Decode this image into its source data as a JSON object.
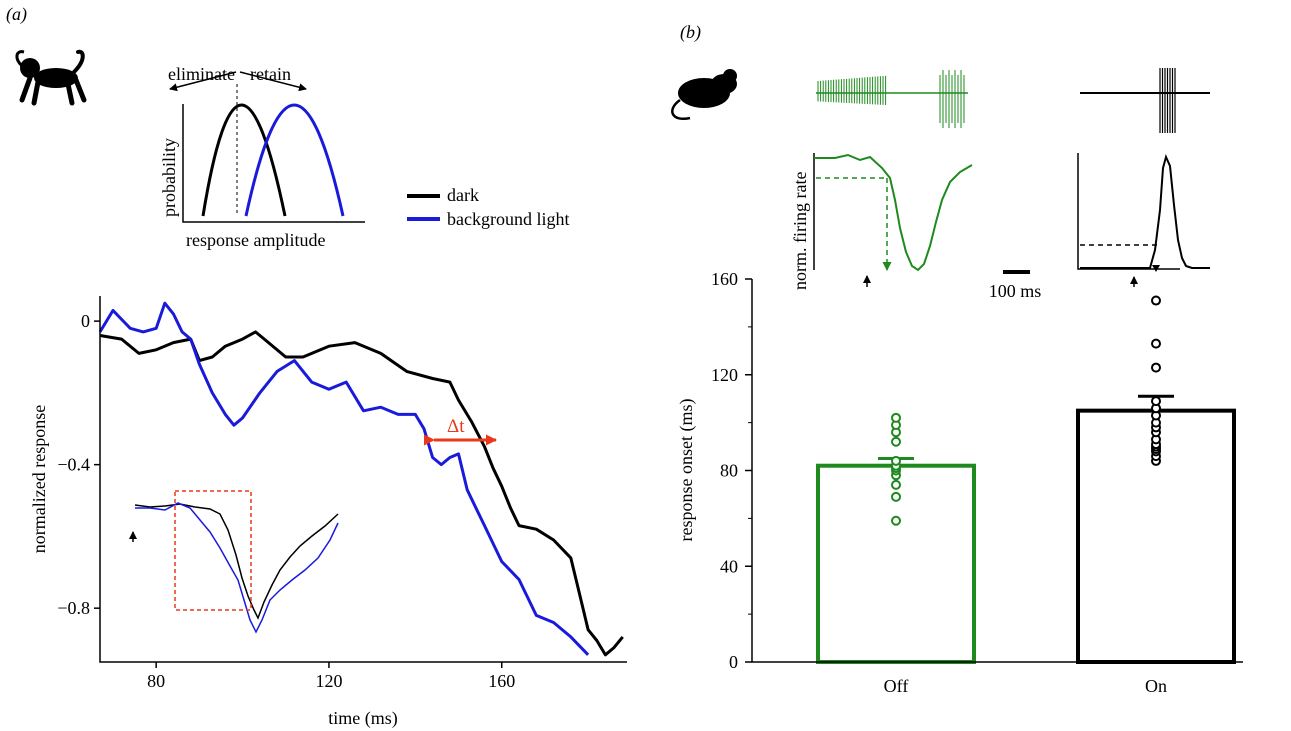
{
  "panel_a": {
    "label": "(a)",
    "schematic": {
      "left_arrow_label": "eliminate",
      "right_arrow_label": "retain",
      "ylabel": "probability",
      "xlabel": "response amplitude"
    },
    "legend": [
      {
        "label": "dark",
        "color": "#000000"
      },
      {
        "label": "background light",
        "color": "#1a1adb"
      }
    ],
    "delta_t_label": "Δt",
    "delta_t_color": "#e8391a"
  },
  "panel_b": {
    "label": "(b)",
    "firing_rate_label": "norm. firing rate",
    "scale_bar_label": "100 ms",
    "off_color": "#1e8a1e",
    "on_color": "#000000"
  },
  "chart_data": [
    {
      "type": "line",
      "xlabel": "time (ms)",
      "ylabel": "normalized response",
      "xlim": [
        67,
        189
      ],
      "ylim": [
        -0.95,
        0.07
      ],
      "x_ticks": [
        80,
        120,
        160
      ],
      "x_tick_labels": [
        "80",
        "120",
        "160"
      ],
      "y_ticks": [
        0,
        -0.4,
        -0.8
      ],
      "y_tick_labels": [
        "0",
        "−0.4",
        "−0.8"
      ],
      "series": [
        {
          "name": "dark",
          "color": "#000000",
          "x": [
            67,
            72,
            76,
            80,
            84,
            88,
            90,
            93,
            96,
            100,
            103,
            106,
            110,
            114,
            120,
            126,
            132,
            138,
            144,
            148,
            150,
            153,
            156,
            158,
            160,
            162,
            164,
            168,
            172,
            176,
            178,
            180,
            182,
            184,
            186,
            188
          ],
          "y": [
            -0.04,
            -0.05,
            -0.09,
            -0.08,
            -0.06,
            -0.05,
            -0.11,
            -0.1,
            -0.07,
            -0.05,
            -0.03,
            -0.06,
            -0.1,
            -0.1,
            -0.07,
            -0.06,
            -0.09,
            -0.14,
            -0.16,
            -0.17,
            -0.22,
            -0.28,
            -0.35,
            -0.41,
            -0.46,
            -0.52,
            -0.57,
            -0.58,
            -0.61,
            -0.66,
            -0.76,
            -0.86,
            -0.89,
            -0.93,
            -0.91,
            -0.88
          ]
        },
        {
          "name": "background light",
          "color": "#1a1adb",
          "x": [
            67,
            70,
            74,
            77,
            80,
            82,
            84,
            86,
            88,
            90,
            93,
            96,
            98,
            100,
            104,
            108,
            112,
            116,
            120,
            124,
            128,
            132,
            136,
            140,
            142,
            144,
            146,
            148,
            150,
            152,
            154,
            156,
            160,
            164,
            168,
            172,
            176,
            180
          ],
          "y": [
            -0.03,
            0.03,
            -0.02,
            -0.03,
            -0.02,
            0.05,
            0.02,
            -0.03,
            -0.05,
            -0.12,
            -0.2,
            -0.26,
            -0.29,
            -0.27,
            -0.2,
            -0.14,
            -0.11,
            -0.17,
            -0.19,
            -0.17,
            -0.25,
            -0.24,
            -0.26,
            -0.26,
            -0.3,
            -0.38,
            -0.4,
            -0.38,
            -0.37,
            -0.47,
            -0.52,
            -0.57,
            -0.67,
            -0.72,
            -0.82,
            -0.84,
            -0.88,
            -0.93
          ]
        }
      ]
    },
    {
      "type": "bar",
      "xlabel": "",
      "ylabel": "response onset (ms)",
      "ylim": [
        0,
        160
      ],
      "y_ticks": [
        0,
        40,
        80,
        120,
        160
      ],
      "y_tick_labels": [
        "0",
        "40",
        "80",
        "120",
        "160"
      ],
      "categories": [
        "Off",
        "On"
      ],
      "values": [
        82,
        105
      ],
      "sem": [
        3,
        6
      ],
      "colors": [
        "#1e8a1e",
        "#000000"
      ],
      "points": [
        [
          59,
          69,
          74,
          78,
          80,
          81,
          82,
          84,
          92,
          96,
          99,
          102
        ],
        [
          84,
          86,
          88,
          89,
          90,
          91,
          93,
          96,
          98,
          100,
          103,
          106,
          109,
          123,
          133,
          151
        ]
      ]
    }
  ]
}
